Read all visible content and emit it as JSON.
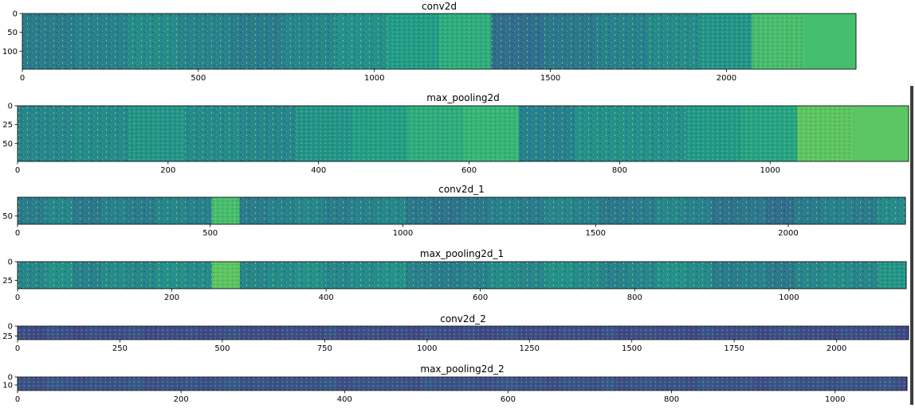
{
  "colors": {
    "background": "#ffffff",
    "colormap": "viridis",
    "viridis_dark": "#440154",
    "viridis_mid": "#21918c",
    "viridis_bright": "#fde725",
    "axis_text": "#000000"
  },
  "chart_data": [
    {
      "type": "heatmap",
      "title": "conv2d",
      "xlim": [
        0,
        2368
      ],
      "ylim": [
        148,
        0
      ],
      "xticks": [
        0,
        500,
        1000,
        1500,
        2000
      ],
      "yticks": [
        0,
        50,
        100
      ],
      "tiles": 16,
      "content_tiles": 15,
      "tile_levels": [
        0.42,
        0.44,
        0.48,
        0.45,
        0.42,
        0.46,
        0.5,
        0.55,
        0.62,
        0.36,
        0.4,
        0.44,
        0.48,
        0.52,
        0.7,
        0.7
      ]
    },
    {
      "type": "heatmap",
      "title": "max_pooling2d",
      "xlim": [
        0,
        1184
      ],
      "ylim": [
        74,
        0
      ],
      "xticks": [
        0,
        200,
        400,
        600,
        800,
        1000
      ],
      "yticks": [
        0,
        25,
        50
      ],
      "tiles": 16,
      "content_tiles": 15,
      "tile_levels": [
        0.46,
        0.48,
        0.52,
        0.48,
        0.46,
        0.52,
        0.56,
        0.62,
        0.66,
        0.44,
        0.5,
        0.5,
        0.54,
        0.58,
        0.74,
        0.74
      ]
    },
    {
      "type": "heatmap",
      "title": "conv2d_1",
      "xlim": [
        0,
        2304
      ],
      "ylim": [
        72,
        0
      ],
      "xticks": [
        0,
        500,
        1000,
        1500,
        2000
      ],
      "yticks": [
        50
      ],
      "tiles": 32,
      "content_tiles": 32,
      "tile_levels": [
        0.42,
        0.46,
        0.4,
        0.44,
        0.42,
        0.46,
        0.44,
        0.7,
        0.42,
        0.44,
        0.46,
        0.42,
        0.44,
        0.46,
        0.4,
        0.38,
        0.4,
        0.44,
        0.42,
        0.46,
        0.44,
        0.4,
        0.42,
        0.46,
        0.44,
        0.38,
        0.4,
        0.36,
        0.42,
        0.44,
        0.42,
        0.48
      ]
    },
    {
      "type": "heatmap",
      "title": "max_pooling2d_1",
      "xlim": [
        0,
        1152
      ],
      "ylim": [
        36,
        0
      ],
      "xticks": [
        0,
        200,
        400,
        600,
        800,
        1000
      ],
      "yticks": [
        0,
        25
      ],
      "tiles": 32,
      "content_tiles": 32,
      "tile_levels": [
        0.46,
        0.5,
        0.44,
        0.48,
        0.46,
        0.5,
        0.48,
        0.74,
        0.46,
        0.48,
        0.5,
        0.46,
        0.48,
        0.5,
        0.44,
        0.42,
        0.44,
        0.48,
        0.46,
        0.5,
        0.48,
        0.44,
        0.46,
        0.5,
        0.48,
        0.42,
        0.44,
        0.4,
        0.46,
        0.48,
        0.46,
        0.52
      ]
    },
    {
      "type": "heatmap",
      "title": "conv2d_2",
      "xlim": [
        0,
        2176
      ],
      "ylim": [
        34,
        0
      ],
      "xticks": [
        0,
        250,
        500,
        750,
        1000,
        1250,
        1500,
        1750,
        2000
      ],
      "yticks": [
        0,
        25
      ],
      "tiles": 64,
      "content_tiles": 64,
      "tile_levels": [
        0.24,
        0.22,
        0.26,
        0.24,
        0.22,
        0.25,
        0.23,
        0.24,
        0.26,
        0.22,
        0.24,
        0.23,
        0.25,
        0.22,
        0.24,
        0.26,
        0.23,
        0.24,
        0.22,
        0.25,
        0.24,
        0.23,
        0.26,
        0.22,
        0.24,
        0.25,
        0.23,
        0.24,
        0.22,
        0.26,
        0.24,
        0.23,
        0.25,
        0.22,
        0.24,
        0.26,
        0.23,
        0.24,
        0.22,
        0.25,
        0.24,
        0.23,
        0.26,
        0.22,
        0.24,
        0.25,
        0.23,
        0.24,
        0.22,
        0.26,
        0.24,
        0.23,
        0.25,
        0.22,
        0.24,
        0.26,
        0.23,
        0.24,
        0.22,
        0.25,
        0.24,
        0.23,
        0.26,
        0.22
      ]
    },
    {
      "type": "heatmap",
      "title": "max_pooling2d_2",
      "xlim": [
        0,
        1088
      ],
      "ylim": [
        17,
        0
      ],
      "xticks": [
        0,
        200,
        400,
        600,
        800,
        1000
      ],
      "yticks": [
        0,
        10
      ],
      "tiles": 64,
      "content_tiles": 64,
      "tile_levels": [
        0.26,
        0.24,
        0.28,
        0.26,
        0.24,
        0.27,
        0.25,
        0.26,
        0.28,
        0.24,
        0.26,
        0.25,
        0.27,
        0.24,
        0.26,
        0.28,
        0.25,
        0.26,
        0.24,
        0.27,
        0.26,
        0.25,
        0.28,
        0.24,
        0.26,
        0.27,
        0.25,
        0.26,
        0.24,
        0.28,
        0.26,
        0.25,
        0.27,
        0.24,
        0.26,
        0.28,
        0.25,
        0.26,
        0.24,
        0.27,
        0.26,
        0.25,
        0.28,
        0.24,
        0.26,
        0.27,
        0.25,
        0.26,
        0.24,
        0.28,
        0.26,
        0.25,
        0.27,
        0.24,
        0.26,
        0.28,
        0.25,
        0.26,
        0.24,
        0.27,
        0.26,
        0.25,
        0.28,
        0.24
      ]
    }
  ]
}
